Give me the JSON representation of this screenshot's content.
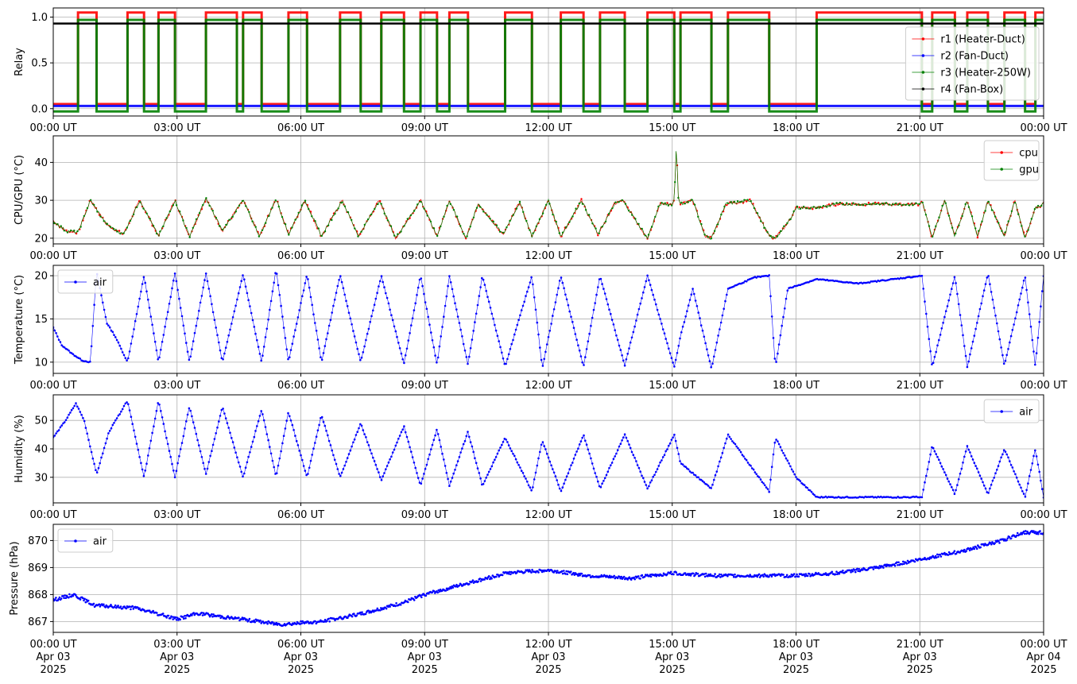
{
  "chart_data": [
    {
      "type": "line",
      "ylabel": "Relay",
      "ylim": [
        -0.08,
        1.1
      ],
      "yticks": [
        0.0,
        0.5,
        1.0
      ],
      "ytick_labels": [
        "0.0",
        "0.5",
        "1.0"
      ],
      "xtick_labels": [
        "00:00 UT",
        "03:00 UT",
        "06:00 UT",
        "09:00 UT",
        "12:00 UT",
        "15:00 UT",
        "18:00 UT",
        "21:00 UT",
        "00:00 UT"
      ],
      "grid": true,
      "legend": "right",
      "series": [
        {
          "name": "r1 (Heater-Duct)",
          "color": "#ff0000",
          "offset": 0.05,
          "on_intervals": [
            [
              0.6,
              1.05
            ],
            [
              1.8,
              2.2
            ],
            [
              2.55,
              2.95
            ],
            [
              3.7,
              4.45
            ],
            [
              4.6,
              5.05
            ],
            [
              5.7,
              6.15
            ],
            [
              6.95,
              7.45
            ],
            [
              7.95,
              8.5
            ],
            [
              8.9,
              9.3
            ],
            [
              9.6,
              10.05
            ],
            [
              10.95,
              11.6
            ],
            [
              12.3,
              12.85
            ],
            [
              13.25,
              13.85
            ],
            [
              14.4,
              15.05
            ],
            [
              15.2,
              15.95
            ],
            [
              16.35,
              17.35
            ],
            [
              18.5,
              21.05
            ],
            [
              21.3,
              21.85
            ],
            [
              22.15,
              22.65
            ],
            [
              23.05,
              23.55
            ],
            [
              23.8,
              24.0
            ]
          ]
        },
        {
          "name": "r2 (Fan-Duct)",
          "color": "#0000ff",
          "offset": 0.03,
          "on_intervals": []
        },
        {
          "name": "r3 (Heater-250W)",
          "color": "#008000",
          "offset": -0.03,
          "on_intervals": [
            [
              0.6,
              1.05
            ],
            [
              1.8,
              2.2
            ],
            [
              2.55,
              2.95
            ],
            [
              3.7,
              4.45
            ],
            [
              4.6,
              5.05
            ],
            [
              5.7,
              6.15
            ],
            [
              6.95,
              7.45
            ],
            [
              7.95,
              8.5
            ],
            [
              8.9,
              9.3
            ],
            [
              9.6,
              10.05
            ],
            [
              10.95,
              11.6
            ],
            [
              12.3,
              12.85
            ],
            [
              13.25,
              13.85
            ],
            [
              14.4,
              15.05
            ],
            [
              15.2,
              15.95
            ],
            [
              16.35,
              17.35
            ],
            [
              18.5,
              21.05
            ],
            [
              21.3,
              21.85
            ],
            [
              22.15,
              22.65
            ],
            [
              23.05,
              23.55
            ],
            [
              23.8,
              24.0
            ]
          ]
        },
        {
          "name": "r4 (Fan-Box)",
          "color": "#000000",
          "offset": -0.07,
          "on_intervals": [
            [
              0.0,
              24.0
            ]
          ]
        }
      ]
    },
    {
      "type": "line",
      "ylabel": "CPU/GPU (°C)",
      "ylim": [
        18.5,
        47
      ],
      "yticks": [
        20,
        30,
        40
      ],
      "ytick_labels": [
        "20",
        "30",
        "40"
      ],
      "xtick_labels": [
        "00:00 UT",
        "03:00 UT",
        "06:00 UT",
        "09:00 UT",
        "12:00 UT",
        "15:00 UT",
        "18:00 UT",
        "21:00 UT",
        "00:00 UT"
      ],
      "grid": true,
      "legend": "top-right",
      "series": [
        {
          "name": "cpu",
          "color": "#ff0000"
        },
        {
          "name": "gpu",
          "color": "#008000"
        }
      ],
      "x": [
        0.0,
        0.3,
        0.6,
        0.9,
        1.3,
        1.7,
        2.1,
        2.55,
        2.95,
        3.3,
        3.7,
        4.1,
        4.6,
        5.0,
        5.4,
        5.7,
        6.1,
        6.5,
        7.0,
        7.4,
        7.9,
        8.3,
        8.9,
        9.3,
        9.6,
        10.0,
        10.3,
        10.9,
        11.3,
        11.6,
        12.0,
        12.3,
        12.8,
        13.2,
        13.6,
        13.8,
        14.4,
        14.7,
        15.0,
        15.05,
        15.1,
        15.15,
        15.2,
        15.5,
        15.8,
        15.95,
        16.3,
        16.9,
        17.35,
        17.5,
        17.8,
        18.0,
        18.5,
        19.0,
        20.0,
        21.0,
        21.05,
        21.3,
        21.6,
        21.85,
        22.15,
        22.4,
        22.65,
        23.05,
        23.3,
        23.55,
        23.8,
        24.0
      ],
      "values_cpu": [
        24.5,
        22,
        21.5,
        30,
        23.5,
        21,
        30,
        20.5,
        30,
        20.5,
        30.5,
        22,
        30,
        20.5,
        30.5,
        21,
        30,
        20.5,
        30,
        20.5,
        30,
        20,
        30,
        20.5,
        30,
        20,
        29,
        21,
        29.5,
        20.5,
        30,
        20.5,
        30,
        21,
        29,
        30,
        20,
        29,
        29,
        30,
        45,
        30,
        29,
        30,
        20.5,
        20,
        29,
        30,
        20.5,
        20,
        24,
        28,
        28,
        29,
        29,
        29,
        30,
        20,
        30,
        20.5,
        30,
        20.5,
        30,
        20.5,
        30,
        20,
        28,
        29
      ],
      "values_gpu": [
        24.5,
        22,
        21.5,
        30,
        23.5,
        21,
        30,
        20.5,
        30,
        20.5,
        30.5,
        22,
        30,
        20.5,
        30.5,
        21,
        30,
        20.5,
        30,
        20.5,
        30,
        20,
        30,
        20.5,
        30,
        20,
        29,
        21,
        29.5,
        20.5,
        30,
        20.5,
        30,
        21,
        29,
        30,
        20,
        29,
        29,
        30,
        45,
        30,
        29,
        30,
        20.5,
        20,
        29,
        30,
        20.5,
        20,
        24,
        28,
        28,
        29,
        29,
        29,
        30,
        20,
        30,
        20.5,
        30,
        20.5,
        30,
        20.5,
        30,
        20,
        28,
        29
      ]
    },
    {
      "type": "line",
      "ylabel": "Temperature (°C)",
      "ylim": [
        8.7,
        21.2
      ],
      "yticks": [
        10,
        15,
        20
      ],
      "ytick_labels": [
        "10",
        "15",
        "20"
      ],
      "xtick_labels": [
        "00:00 UT",
        "03:00 UT",
        "06:00 UT",
        "09:00 UT",
        "12:00 UT",
        "15:00 UT",
        "18:00 UT",
        "21:00 UT",
        "00:00 UT"
      ],
      "grid": true,
      "legend": "top-left",
      "series": [
        {
          "name": "air",
          "color": "#0000ff"
        }
      ],
      "x": [
        0.0,
        0.2,
        0.45,
        0.7,
        0.9,
        1.05,
        1.3,
        1.5,
        1.8,
        2.2,
        2.55,
        2.95,
        3.3,
        3.7,
        4.1,
        4.6,
        5.05,
        5.4,
        5.7,
        6.15,
        6.5,
        6.95,
        7.45,
        7.95,
        8.5,
        8.9,
        9.3,
        9.6,
        10.05,
        10.4,
        10.95,
        11.6,
        11.85,
        12.3,
        12.85,
        13.25,
        13.85,
        14.4,
        15.05,
        15.2,
        15.5,
        15.95,
        16.35,
        17.0,
        17.35,
        17.5,
        17.8,
        18.5,
        19.5,
        21.05,
        21.3,
        21.85,
        22.15,
        22.65,
        23.05,
        23.55,
        23.8,
        24.0
      ],
      "values": [
        14,
        12,
        11,
        10.2,
        10,
        20.5,
        14.5,
        13,
        10,
        20,
        10,
        20.3,
        10,
        20.3,
        10,
        20.2,
        10,
        20.8,
        10,
        20.2,
        10,
        20.1,
        10,
        20,
        9.8,
        20,
        9.7,
        20,
        9.7,
        20,
        9.5,
        20,
        9.3,
        20,
        9.5,
        20,
        9.6,
        20,
        9.4,
        13,
        18.5,
        9.2,
        18.5,
        19.8,
        20,
        9.4,
        18.5,
        19.6,
        19.1,
        20,
        9.4,
        20,
        9.4,
        20.3,
        9.6,
        20,
        9.5,
        20
      ]
    },
    {
      "type": "line",
      "ylabel": "Humidity (%)",
      "ylim": [
        21,
        59
      ],
      "yticks": [
        30,
        40,
        50
      ],
      "ytick_labels": [
        "30",
        "40",
        "50"
      ],
      "xtick_labels": [
        "00:00 UT",
        "03:00 UT",
        "06:00 UT",
        "09:00 UT",
        "12:00 UT",
        "15:00 UT",
        "18:00 UT",
        "21:00 UT",
        "00:00 UT"
      ],
      "grid": true,
      "legend": "top-right",
      "series": [
        {
          "name": "air",
          "color": "#0000ff"
        }
      ],
      "x": [
        0.0,
        0.3,
        0.55,
        0.75,
        1.05,
        1.35,
        1.8,
        2.2,
        2.55,
        2.95,
        3.3,
        3.7,
        4.1,
        4.6,
        5.05,
        5.4,
        5.7,
        6.15,
        6.5,
        6.95,
        7.45,
        7.95,
        8.5,
        8.9,
        9.3,
        9.6,
        10.05,
        10.4,
        10.95,
        11.6,
        11.85,
        12.3,
        12.85,
        13.25,
        13.85,
        14.4,
        15.05,
        15.2,
        15.95,
        16.35,
        17.35,
        17.5,
        18.0,
        18.5,
        19.5,
        21.05,
        21.3,
        21.85,
        22.15,
        22.65,
        23.05,
        23.55,
        23.8,
        24.0
      ],
      "values": [
        44,
        50,
        56,
        50,
        31,
        46,
        57,
        30,
        57,
        30,
        55,
        31,
        55,
        30,
        54,
        30,
        53,
        30,
        52,
        30,
        49,
        29,
        48,
        27,
        47,
        27,
        46,
        27,
        44,
        25,
        43,
        25,
        45,
        26,
        45,
        26,
        45,
        35,
        26,
        45,
        25,
        44,
        30,
        23,
        23,
        23,
        41,
        24,
        41,
        24,
        40,
        23,
        40,
        23
      ]
    },
    {
      "type": "scatter",
      "ylabel": "Pressure (hPa)",
      "ylim": [
        866.6,
        870.6
      ],
      "yticks": [
        867,
        868,
        869,
        870
      ],
      "ytick_labels": [
        "867",
        "868",
        "869",
        "870"
      ],
      "xtick_labels": [
        "00:00 UT\nApr 03\n2025",
        "03:00 UT\nApr 03\n2025",
        "06:00 UT\nApr 03\n2025",
        "09:00 UT\nApr 03\n2025",
        "12:00 UT\nApr 03\n2025",
        "15:00 UT\nApr 03\n2025",
        "18:00 UT\nApr 03\n2025",
        "21:00 UT\nApr 03\n2025",
        "00:00 UT\nApr 04\n2025"
      ],
      "grid": true,
      "legend": "top-left",
      "series": [
        {
          "name": "air",
          "color": "#0000ff"
        }
      ],
      "x": [
        0.0,
        0.5,
        1.0,
        2.0,
        3.0,
        3.5,
        4.5,
        5.5,
        6.5,
        7.5,
        8.5,
        9.0,
        10.0,
        11.0,
        12.0,
        13.0,
        14.0,
        15.0,
        16.0,
        17.0,
        18.0,
        19.0,
        20.0,
        21.0,
        22.0,
        23.0,
        23.5,
        24.0
      ],
      "values": [
        867.8,
        868.0,
        867.6,
        867.5,
        867.1,
        867.3,
        867.1,
        866.9,
        867.0,
        867.3,
        867.7,
        868.0,
        868.4,
        868.8,
        868.9,
        868.7,
        868.6,
        868.8,
        868.7,
        868.7,
        868.7,
        868.8,
        869.0,
        869.3,
        869.6,
        870.0,
        870.3,
        870.3
      ]
    }
  ]
}
